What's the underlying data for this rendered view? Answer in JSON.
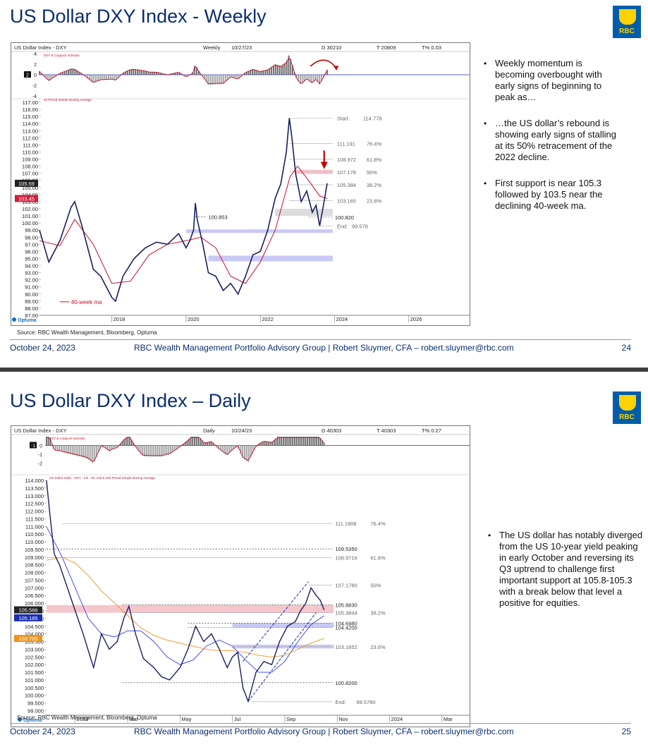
{
  "slides": [
    {
      "title": "US Dollar DXY Index - Weekly",
      "logo_text": "RBC",
      "chart_header": {
        "name": "US Dollar Index - DXY",
        "period": "Weekly",
        "date": "10/27/23",
        "d": "D 30210",
        "t": "T 20809",
        "tpct": "T% 0.03",
        "osc_label": "DXY & Coppock Indicator",
        "ma_legend": "40 Period Simple Moving Average"
      },
      "ma_label": "40-week ma",
      "optuma": "Optuma",
      "source": "Source: RBC Wealth Management, Bloomberg, Optuma",
      "bullets": [
        "Weekly momentum is becoming overbought with early signs of beginning to peak as…",
        "…the US dollar’s rebound is showing early signs of stalling at its 50% retracement of the 2022 decline.",
        "First support is near 105.3 followed by 103.5 near the declining 40-week ma."
      ],
      "footer": {
        "date": "October 24, 2023",
        "center": "RBC Wealth Management Portfolio Advisory Group  |  Robert Sluymer, CFA – robert.sluymer@rbc.com",
        "page": "24"
      }
    },
    {
      "title": "US Dollar DXY Index – Daily",
      "logo_text": "RBC",
      "chart_header": {
        "name": "US Dollar Index - DXY",
        "period": "Daily",
        "date": "10/24/23",
        "d": "D 40303",
        "t": "T 40303",
        "tpct": "T% 0.27",
        "osc_label": "DXY & Coppock Indicator",
        "ma_legend": "US Dollar Index - DXY - Cls - 50, 100 & 200 Period Simple Moving Average"
      },
      "optuma": "Optuma",
      "source": "Source: RBC Wealth Management, Bloomberg, Optuma",
      "bullets": [
        "The US dollar has notably diverged from the US 10-year yield peaking in early October and reversing its Q3 uptrend to challenge first important support at 105.8-105.3 with a break below that level a positive for equities."
      ],
      "footer": {
        "date": "October 24, 2023",
        "center": "RBC Wealth Management Portfolio Advisory Group  |  Robert Sluymer, CFA – robert.sluymer@rbc.com",
        "page": "25"
      }
    }
  ],
  "chart_data": [
    {
      "type": "line",
      "title": "US Dollar Index - DXY",
      "period": "Weekly",
      "ylim": [
        87,
        117
      ],
      "y_ticks": [
        "117.00",
        "116.00",
        "115.00",
        "114.00",
        "113.00",
        "112.00",
        "111.00",
        "110.00",
        "109.00",
        "108.00",
        "107.00",
        "106.00",
        "105.00",
        "104.00",
        "103.00",
        "102.00",
        "101.00",
        "100.00",
        "99.00",
        "98.00",
        "97.00",
        "96.00",
        "95.00",
        "94.00",
        "93.00",
        "92.00",
        "91.00",
        "90.00",
        "89.00",
        "88.00",
        "87.00"
      ],
      "y_tick_values": [
        117,
        116,
        115,
        114,
        113,
        112,
        111,
        110,
        109,
        108,
        107,
        106,
        105,
        104,
        103,
        102,
        101,
        100,
        99,
        98,
        97,
        96,
        95,
        94,
        93,
        92,
        91,
        90,
        89,
        88,
        87
      ],
      "x_labels": [
        "2018",
        "2020",
        "2022",
        "2024",
        "2026"
      ],
      "x_label_years": [
        2018,
        2020,
        2022,
        2024,
        2026
      ],
      "xlim": [
        2016.05,
        2027.6
      ],
      "price_badges": [
        {
          "text": "105.59",
          "value": 105.59,
          "color": "#222222"
        },
        {
          "text": "103.45",
          "value": 103.45,
          "color": "#d0203a"
        }
      ],
      "series": [
        {
          "role": "price",
          "x": [
            2016.05,
            2016.3,
            2016.6,
            2016.9,
            2017.0,
            2017.2,
            2017.5,
            2017.7,
            2018.0,
            2018.1,
            2018.3,
            2018.6,
            2018.9,
            2019.2,
            2019.5,
            2019.8,
            2020.0,
            2020.1,
            2020.2,
            2020.25,
            2020.3,
            2020.45,
            2020.6,
            2020.8,
            2021.0,
            2021.2,
            2021.4,
            2021.6,
            2021.8,
            2022.0,
            2022.2,
            2022.4,
            2022.55,
            2022.7,
            2022.78,
            2022.85,
            2022.95,
            2023.1,
            2023.25,
            2023.4,
            2023.5,
            2023.6,
            2023.7,
            2023.8
          ],
          "values": [
            99.0,
            94.5,
            97.5,
            102.2,
            103.0,
            99.5,
            93.5,
            92.5,
            89.5,
            89.0,
            92.5,
            95.0,
            96.5,
            97.3,
            97.0,
            98.5,
            96.5,
            97.5,
            99.0,
            102.8,
            100.5,
            97.0,
            93.0,
            92.5,
            90.5,
            91.5,
            90.0,
            92.5,
            95.5,
            96.0,
            99.0,
            103.5,
            105.5,
            110.0,
            114.778,
            112.0,
            107.0,
            103.0,
            104.5,
            101.5,
            102.5,
            99.578,
            102.5,
            105.59
          ]
        },
        {
          "role": "40-week ma",
          "x": [
            2016.05,
            2016.6,
            2017.0,
            2017.5,
            2018.0,
            2018.5,
            2019.0,
            2019.5,
            2020.0,
            2020.4,
            2020.8,
            2021.2,
            2021.6,
            2022.0,
            2022.4,
            2022.8,
            2023.0,
            2023.3,
            2023.6,
            2023.8
          ],
          "values": [
            97.5,
            96.8,
            100.5,
            97.0,
            91.5,
            91.8,
            95.5,
            97.0,
            97.5,
            98.0,
            96.5,
            92.5,
            91.5,
            94.5,
            99.0,
            106.5,
            108.0,
            106.0,
            103.8,
            103.45
          ]
        }
      ],
      "levels": [
        {
          "label": "Start:",
          "value": 114.778,
          "text": "114.778"
        },
        {
          "label": "111.191",
          "value": 111.191,
          "pct": "76.4%"
        },
        {
          "label": "108.972",
          "value": 108.972,
          "pct": "61.8%"
        },
        {
          "label": "107.178",
          "value": 107.178,
          "pct": "50%"
        },
        {
          "label": "105.384",
          "value": 105.384,
          "pct": "38.2%"
        },
        {
          "label": "103.165",
          "value": 103.165,
          "pct": "23.6%"
        },
        {
          "label": "100.820",
          "value": 100.82
        },
        {
          "label": "End:",
          "value": 99.578,
          "text": "99.578"
        },
        {
          "label": "100.853",
          "value": 100.853
        }
      ],
      "oscillator": {
        "ylim": [
          -4,
          4
        ],
        "ticks": [
          "4",
          "2",
          "0",
          "-2",
          "-4"
        ],
        "tick_values": [
          4,
          2,
          0,
          -2,
          -4
        ],
        "current": "2"
      }
    },
    {
      "type": "line",
      "title": "US Dollar Index - DXY",
      "period": "Daily",
      "ylim": [
        98.7,
        114.0
      ],
      "y_ticks": [
        "114.000",
        "113.500",
        "113.000",
        "112.500",
        "112.000",
        "111.500",
        "111.000",
        "110.500",
        "110.000",
        "109.500",
        "109.000",
        "108.500",
        "108.000",
        "107.500",
        "107.000",
        "106.500",
        "106.000",
        "105.500",
        "105.000",
        "104.500",
        "104.000",
        "103.500",
        "103.000",
        "102.500",
        "102.000",
        "101.500",
        "101.000",
        "100.500",
        "100.000",
        "99.500",
        "99.000"
      ],
      "y_tick_values": [
        114,
        113.5,
        113,
        112.5,
        112,
        111.5,
        111,
        110.5,
        110,
        109.5,
        109,
        108.5,
        108,
        107.5,
        107,
        106.5,
        106,
        105.5,
        105,
        104.5,
        104,
        103.5,
        103,
        102.5,
        102,
        101.5,
        101,
        100.5,
        100,
        99.5,
        99
      ],
      "x_labels": [
        "2023",
        "Mar",
        "May",
        "Jul",
        "Sep",
        "Nov",
        "2024",
        "Mar"
      ],
      "x_label_months": [
        0,
        2,
        4,
        6,
        8,
        10,
        12,
        14
      ],
      "xlim": [
        -1.15,
        15.0
      ],
      "price_badges": [
        {
          "text": "105.566",
          "value": 105.566,
          "color": "#222222"
        },
        {
          "text": "105.185",
          "value": 105.185,
          "color": "#1a2fb0"
        },
        {
          "text": "103.705",
          "value": 103.705,
          "color": "#e8961e"
        }
      ],
      "series": [
        {
          "role": "price",
          "x": [
            -1.1,
            -0.95,
            -0.8,
            -0.6,
            -0.4,
            -0.1,
            0.3,
            0.7,
            1.0,
            1.3,
            1.6,
            1.85,
            2.05,
            2.3,
            2.6,
            3.0,
            3.3,
            3.6,
            4.0,
            4.3,
            4.6,
            4.9,
            5.2,
            5.5,
            5.8,
            6.0,
            6.2,
            6.4,
            6.6,
            6.9,
            7.2,
            7.5,
            7.8,
            8.1,
            8.4,
            8.6,
            8.8,
            9.0,
            9.2,
            9.35,
            9.5
          ],
          "values": [
            114.0,
            111.5,
            109.2,
            108.5,
            107.5,
            106.0,
            104.0,
            101.8,
            104.0,
            103.0,
            103.5,
            105.0,
            105.8,
            104.0,
            102.4,
            101.8,
            101.2,
            101.0,
            101.8,
            103.0,
            104.5,
            103.5,
            104.0,
            103.0,
            101.8,
            102.5,
            102.8,
            100.5,
            99.6,
            101.5,
            102.2,
            102.0,
            103.5,
            104.5,
            104.8,
            105.5,
            106.0,
            107.0,
            106.5,
            106.2,
            105.566
          ]
        },
        {
          "role": "50-day ma",
          "x": [
            -1.1,
            -0.5,
            0.0,
            0.5,
            1.0,
            1.5,
            2.0,
            2.5,
            3.0,
            3.5,
            4.0,
            4.5,
            5.0,
            5.5,
            6.0,
            6.5,
            7.0,
            7.5,
            8.0,
            8.5,
            9.0,
            9.5
          ],
          "values": [
            111.0,
            109.0,
            107.0,
            105.0,
            104.0,
            103.8,
            104.2,
            104.2,
            103.5,
            102.5,
            102.0,
            102.3,
            103.2,
            103.6,
            103.2,
            102.3,
            101.5,
            101.5,
            102.2,
            103.5,
            104.6,
            105.185
          ]
        },
        {
          "role": "100-day ma",
          "x": [
            -1.1,
            -0.5,
            0.0,
            0.5,
            1.0,
            1.5,
            2.0,
            2.5,
            3.0,
            3.5,
            4.0,
            4.5,
            5.0,
            5.5,
            6.0,
            6.5,
            7.0,
            7.5,
            8.0,
            8.5,
            9.0,
            9.5
          ],
          "values": [
            108.8,
            109.0,
            108.6,
            107.8,
            106.8,
            106.0,
            105.2,
            104.4,
            103.9,
            103.6,
            103.4,
            103.2,
            103.0,
            102.9,
            102.9,
            102.8,
            102.6,
            102.5,
            102.6,
            103.0,
            103.4,
            103.705
          ]
        }
      ],
      "levels": [
        {
          "label": "111.1908",
          "value": 111.1908,
          "pct": "76.4%"
        },
        {
          "label": "109.5350",
          "value": 109.535
        },
        {
          "label": "108.9716",
          "value": 108.9716,
          "pct": "61.8%"
        },
        {
          "label": "107.1780",
          "value": 107.178,
          "pct": "50%"
        },
        {
          "label": "105.8830",
          "value": 105.883
        },
        {
          "label": "105.3844",
          "value": 105.3844,
          "pct": "38.2%"
        },
        {
          "label": "104.6980",
          "value": 104.698
        },
        {
          "label": "104.4200",
          "value": 104.42
        },
        {
          "label": "103.1652",
          "value": 103.1652,
          "pct": "23.6%"
        },
        {
          "label": "100.8200",
          "value": 100.82
        },
        {
          "label": "End:",
          "value": 99.578,
          "text": "99.5780"
        }
      ],
      "oscillator": {
        "ylim": [
          -3,
          1
        ],
        "ticks": [
          "0",
          "-1",
          "-2"
        ],
        "tick_values": [
          0,
          -1,
          -2
        ],
        "current": "-1"
      }
    }
  ],
  "colors": {
    "title": "#0b2d6e",
    "price": "#1a1f5e",
    "ma40": "#c8102e",
    "ma50": "#3a3af0",
    "ma100": "#e8961e",
    "resistance_band": "#f5c6cc",
    "support_band": "#c9c9f5",
    "grey_band": "#dcdcdc",
    "arrow": "#c00000"
  }
}
